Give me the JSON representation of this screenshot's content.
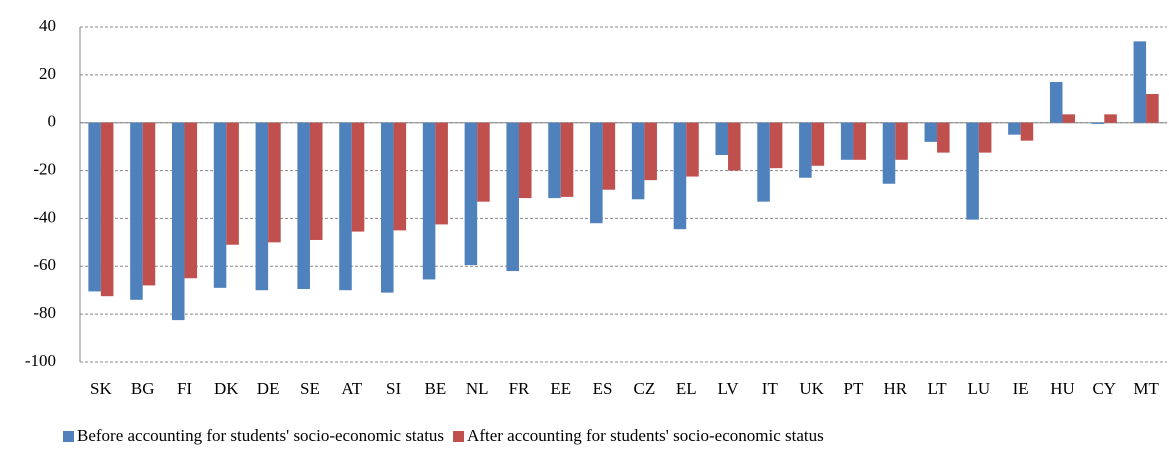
{
  "chart_data": {
    "type": "bar",
    "categories": [
      "SK",
      "BG",
      "FI",
      "DK",
      "DE",
      "SE",
      "AT",
      "SI",
      "BE",
      "NL",
      "FR",
      "EE",
      "ES",
      "CZ",
      "EL",
      "LV",
      "IT",
      "UK",
      "PT",
      "HR",
      "LT",
      "LU",
      "IE",
      "HU",
      "CY",
      "MT"
    ],
    "series": [
      {
        "name": "Before accounting for students' socio-economic status",
        "color": "#4f81bd",
        "values": [
          -70.5,
          -74,
          -82.5,
          -69,
          -70,
          -69.5,
          -70,
          -71,
          -65.5,
          -59.5,
          -62,
          -31.5,
          -42,
          -32,
          -44.5,
          -13.5,
          -33,
          -23,
          -15.5,
          -25.5,
          -8,
          -40.5,
          -5,
          17,
          -0.5,
          34
        ]
      },
      {
        "name": "After accounting for students' socio-economic status",
        "color": "#c0504d",
        "values": [
          -72.5,
          -68,
          -65,
          -51,
          -50,
          -49,
          -45.5,
          -45,
          -42.5,
          -33,
          -31.5,
          -31,
          -28,
          -24,
          -22.5,
          -20,
          -19,
          -18,
          -15.5,
          -15.5,
          -12.5,
          -12.5,
          -7.5,
          3.5,
          3.5,
          12
        ]
      }
    ],
    "ylim": [
      -100,
      40
    ],
    "yticks": [
      -100,
      -80,
      -60,
      -40,
      -20,
      0,
      20,
      40
    ],
    "grid": true,
    "legend": "bottom"
  }
}
